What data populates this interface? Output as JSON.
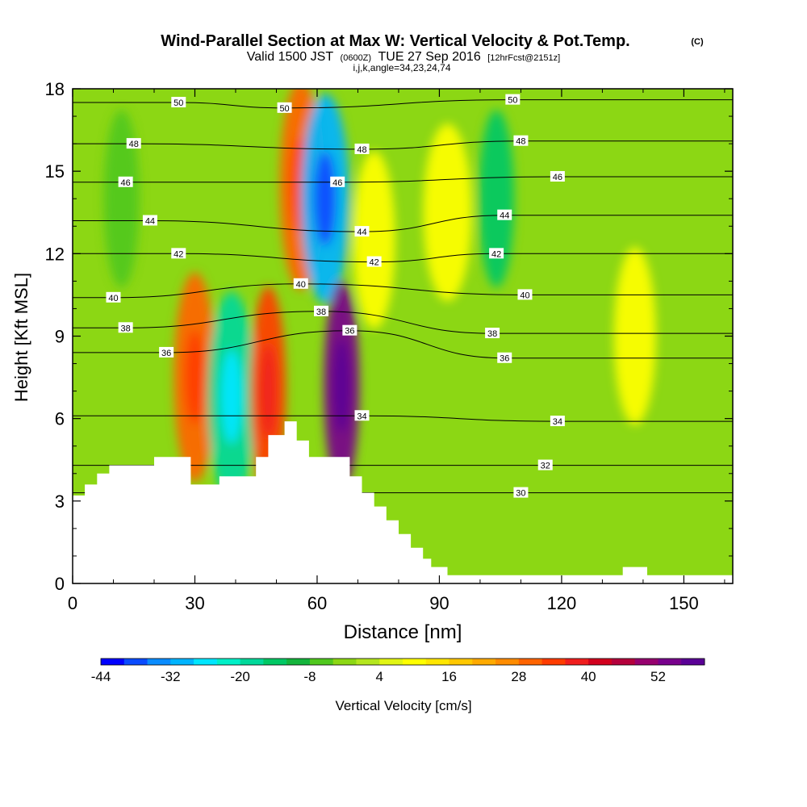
{
  "chart_data": {
    "type": "heatmap",
    "title": "Wind-Parallel Section at Max W: Vertical Velocity & Pot.Temp.",
    "title_suffix": "(C)",
    "subtitle": {
      "valid": "Valid 1500 JST",
      "zulu": "(0600Z)",
      "date": "TUE 27 Sep 2016",
      "forecast": "[12hrFcst@2151z]"
    },
    "subtitle2": "i,j,k,angle=34,23,24,74",
    "xlabel": "Distance [nm]",
    "ylabel": "Height [Kft MSL]",
    "xlim": [
      0,
      162
    ],
    "ylim": [
      0,
      18
    ],
    "xticks": [
      "0",
      "30",
      "60",
      "90",
      "120",
      "150"
    ],
    "yticks": [
      "0",
      "3",
      "6",
      "9",
      "12",
      "15",
      "18"
    ],
    "colorbar": {
      "label": "Vertical Velocity [cm/s]",
      "tick_labels": [
        "-44",
        "-32",
        "-20",
        "-8",
        "4",
        "16",
        "28",
        "40",
        "52"
      ],
      "colors": [
        "#0000ff",
        "#0a4bff",
        "#0a8cff",
        "#00b4ff",
        "#00e6ff",
        "#00f0c8",
        "#00d89a",
        "#00c864",
        "#14b43c",
        "#50c81e",
        "#8cd714",
        "#b4e61e",
        "#e1f514",
        "#ffff00",
        "#ffe600",
        "#ffc800",
        "#ffaa00",
        "#ff8c00",
        "#ff6400",
        "#ff3c00",
        "#f01e1e",
        "#d2001e",
        "#b4003c",
        "#96006e",
        "#78008c",
        "#5a0096"
      ]
    },
    "series": [
      {
        "name": "Vertical Velocity",
        "units": "cm/s",
        "cells": [
          {
            "x": 12,
            "y": 14.0,
            "value": -8
          },
          {
            "x": 30,
            "y": 7.5,
            "value": 28
          },
          {
            "x": 39,
            "y": 6.8,
            "value": -24
          },
          {
            "x": 48,
            "y": 7.0,
            "value": 32
          },
          {
            "x": 56,
            "y": 14.5,
            "value": 28
          },
          {
            "x": 62,
            "y": 14.0,
            "value": -36
          },
          {
            "x": 66,
            "y": 7.2,
            "value": 56
          },
          {
            "x": 74,
            "y": 12.5,
            "value": 10
          },
          {
            "x": 92,
            "y": 13.5,
            "value": 10
          },
          {
            "x": 104,
            "y": 14.0,
            "value": -16
          },
          {
            "x": 138,
            "y": 9.0,
            "value": 6
          }
        ]
      },
      {
        "name": "Potential Temperature",
        "units": "C",
        "contour_labels": [
          {
            "x": 26,
            "y": 17.5,
            "value": "50"
          },
          {
            "x": 52,
            "y": 17.3,
            "value": "50"
          },
          {
            "x": 108,
            "y": 17.6,
            "value": "50"
          },
          {
            "x": 15,
            "y": 16.0,
            "value": "48"
          },
          {
            "x": 71,
            "y": 15.8,
            "value": "48"
          },
          {
            "x": 110,
            "y": 16.1,
            "value": "48"
          },
          {
            "x": 13,
            "y": 14.6,
            "value": "46"
          },
          {
            "x": 65,
            "y": 14.6,
            "value": "46"
          },
          {
            "x": 119,
            "y": 14.8,
            "value": "46"
          },
          {
            "x": 19,
            "y": 13.2,
            "value": "44"
          },
          {
            "x": 71,
            "y": 12.8,
            "value": "44"
          },
          {
            "x": 106,
            "y": 13.4,
            "value": "44"
          },
          {
            "x": 26,
            "y": 12.0,
            "value": "42"
          },
          {
            "x": 74,
            "y": 11.7,
            "value": "42"
          },
          {
            "x": 104,
            "y": 12.0,
            "value": "42"
          },
          {
            "x": 10,
            "y": 10.4,
            "value": "40"
          },
          {
            "x": 56,
            "y": 10.9,
            "value": "40"
          },
          {
            "x": 111,
            "y": 10.5,
            "value": "40"
          },
          {
            "x": 13,
            "y": 9.3,
            "value": "38"
          },
          {
            "x": 61,
            "y": 9.9,
            "value": "38"
          },
          {
            "x": 103,
            "y": 9.1,
            "value": "38"
          },
          {
            "x": 23,
            "y": 8.4,
            "value": "36"
          },
          {
            "x": 68,
            "y": 9.2,
            "value": "36"
          },
          {
            "x": 106,
            "y": 8.2,
            "value": "36"
          },
          {
            "x": 71,
            "y": 6.1,
            "value": "34"
          },
          {
            "x": 119,
            "y": 5.9,
            "value": "34"
          },
          {
            "x": 116,
            "y": 4.3,
            "value": "32"
          },
          {
            "x": 110,
            "y": 3.3,
            "value": "30"
          }
        ]
      }
    ],
    "terrain": {
      "distance": [
        0,
        3,
        3,
        6,
        6,
        9,
        9,
        20,
        20,
        29,
        29,
        36,
        36,
        45,
        45,
        48,
        48,
        52,
        52,
        55,
        55,
        58,
        58,
        61,
        61,
        68,
        68,
        71,
        71,
        74,
        74,
        77,
        77,
        80,
        80,
        83,
        83,
        86,
        86,
        88,
        88,
        92,
        92,
        94,
        94,
        135,
        135,
        141,
        141,
        162
      ],
      "height": [
        3.2,
        3.2,
        3.6,
        3.6,
        4.0,
        4.0,
        4.3,
        4.3,
        4.6,
        4.6,
        3.6,
        3.6,
        3.9,
        3.9,
        4.6,
        4.6,
        5.4,
        5.4,
        5.9,
        5.9,
        5.2,
        5.2,
        4.6,
        4.6,
        4.6,
        4.6,
        3.9,
        3.9,
        3.3,
        3.3,
        2.8,
        2.8,
        2.3,
        2.3,
        1.8,
        1.8,
        1.3,
        1.3,
        0.9,
        0.9,
        0.6,
        0.6,
        0.3,
        0.3,
        0.3,
        0.3,
        0.6,
        0.6,
        0.3,
        0.3
      ]
    }
  }
}
